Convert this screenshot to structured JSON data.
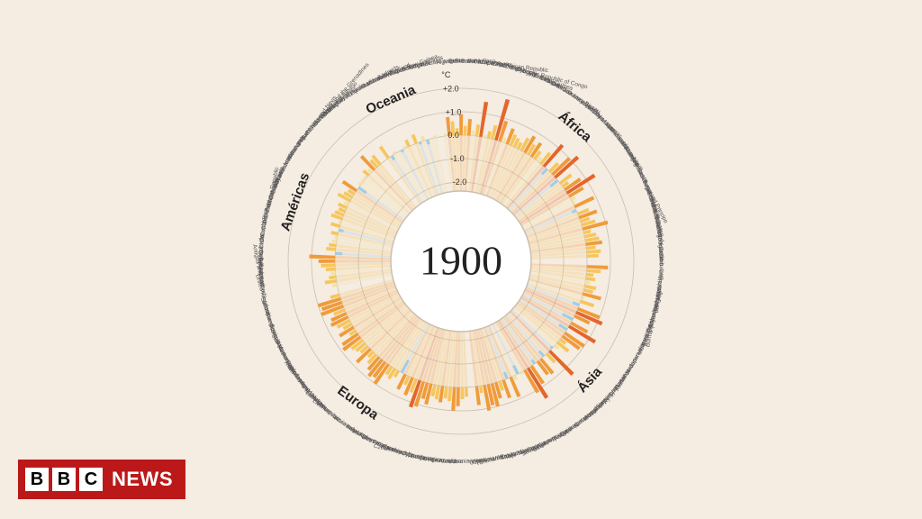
{
  "badge": {
    "b1": "B",
    "b2": "B",
    "b3": "C",
    "news": "NEWS"
  },
  "chart": {
    "type": "radial-bar",
    "center_label": "1900",
    "center_fontsize": 46,
    "background_color": "#f5ece2",
    "center_circle_fill": "#ffffff",
    "center_circle_stroke": "#c9bfae",
    "grid_ring_stroke": "#c9bfae",
    "bar_gap_deg": 0.35,
    "region_gap_deg": 3.0,
    "start_angle_deg": -8,
    "inner_radius": 78,
    "zero_radius": 140,
    "unit_radius": 26,
    "label_radius": 222,
    "region_label_radius": 195,
    "country_label_fontsize": 6.5,
    "region_label_fontsize": 15,
    "axis": {
      "unit_label": "°C",
      "ticks": [
        2.0,
        1.0,
        0.0,
        -1.0,
        -2.0
      ],
      "tick_labels": [
        "+2.0",
        "+1.0",
        "0.0",
        "-1.0",
        "-2.0"
      ],
      "fontsize": 9
    },
    "colors": {
      "cold2": "#5aa7c7",
      "cold1": "#a5cde0",
      "neutral": "#f2e2a6",
      "warm1": "#f6c65e",
      "warm2": "#f09b3a",
      "warm3": "#e3662c"
    },
    "regions": [
      {
        "name": "África",
        "countries": [
          {
            "name": "Algeria",
            "value": 0.1
          },
          {
            "name": "Angola",
            "value": 0.8
          },
          {
            "name": "Benin",
            "value": 0.6
          },
          {
            "name": "Botswana",
            "value": 0.3
          },
          {
            "name": "Burkina Faso",
            "value": 0.9
          },
          {
            "name": "Burundi",
            "value": 0.4
          },
          {
            "name": "Cameroon",
            "value": 0.7
          },
          {
            "name": "Cape Verde",
            "value": 0.2
          },
          {
            "name": "Central African Republic",
            "value": 0.5
          },
          {
            "name": "Chad",
            "value": 1.5
          },
          {
            "name": "Comoros",
            "value": 0.1
          },
          {
            "name": "Congo",
            "value": 0.3
          },
          {
            "name": "Democratic Republic of Congo",
            "value": 0.6
          },
          {
            "name": "Djibouti",
            "value": 1.8
          },
          {
            "name": "Egypt",
            "value": 0.9
          },
          {
            "name": "Equatorial Guinea",
            "value": 0.2
          },
          {
            "name": "Eritrea",
            "value": 0.7
          },
          {
            "name": "Ethiopia",
            "value": 0.5
          },
          {
            "name": "Gabon",
            "value": 0.4
          },
          {
            "name": "Gambia",
            "value": 0.3
          },
          {
            "name": "Ghana",
            "value": 0.6
          },
          {
            "name": "Guinea",
            "value": 0.8
          },
          {
            "name": "Guinea Bissau",
            "value": 0.5
          },
          {
            "name": "Ivory Coast",
            "value": 0.7
          },
          {
            "name": "Kenya",
            "value": 0.4
          },
          {
            "name": "Lesotho",
            "value": 0.2
          },
          {
            "name": "Liberia",
            "value": 0.6
          },
          {
            "name": "Libya",
            "value": 1.2
          },
          {
            "name": "Madagascar",
            "value": -0.3
          },
          {
            "name": "Malawi",
            "value": 0.5
          },
          {
            "name": "Mali",
            "value": 1.0
          },
          {
            "name": "Mauritania",
            "value": 1.3
          },
          {
            "name": "Mauritius",
            "value": -0.4
          },
          {
            "name": "Morocco",
            "value": 0.6
          },
          {
            "name": "Mozambique",
            "value": 0.3
          },
          {
            "name": "Namibia",
            "value": 0.8
          },
          {
            "name": "Niger",
            "value": 1.4
          },
          {
            "name": "Nigeria",
            "value": 0.7
          },
          {
            "name": "Rwanda",
            "value": 0.2
          },
          {
            "name": "Sao Tome and Principe",
            "value": 0.1
          },
          {
            "name": "Senegal",
            "value": 0.9
          },
          {
            "name": "Seychelles",
            "value": -0.2
          },
          {
            "name": "Sierra Leone",
            "value": 0.5
          },
          {
            "name": "Somalia",
            "value": 0.8
          },
          {
            "name": "South Africa",
            "value": 0.4
          },
          {
            "name": "South Sudan",
            "value": 0.6
          },
          {
            "name": "Sudan",
            "value": 1.1
          },
          {
            "name": "Swaziland",
            "value": 0.3
          },
          {
            "name": "Tanzania",
            "value": 0.5
          },
          {
            "name": "Togo",
            "value": 0.6
          },
          {
            "name": "Tunisia",
            "value": 0.7
          },
          {
            "name": "Uganda",
            "value": 0.4
          },
          {
            "name": "Zambia",
            "value": 0.6
          },
          {
            "name": "Zimbabwe",
            "value": 0.5
          }
        ]
      },
      {
        "name": "Ásia",
        "countries": [
          {
            "name": "Afghanistan",
            "value": 0.9
          },
          {
            "name": "Bahrain",
            "value": 0.6
          },
          {
            "name": "Bangladesh",
            "value": 0.3
          },
          {
            "name": "Bhutan",
            "value": 0.4
          },
          {
            "name": "Brunei",
            "value": 0.2
          },
          {
            "name": "Burma (Myanmar)",
            "value": 0.5
          },
          {
            "name": "Cambodia",
            "value": 0.4
          },
          {
            "name": "China",
            "value": 0.8
          },
          {
            "name": "East Timor",
            "value": 0.1
          },
          {
            "name": "India",
            "value": 0.6
          },
          {
            "name": "Indonesia",
            "value": -0.3
          },
          {
            "name": "Iran",
            "value": 1.0
          },
          {
            "name": "Iraq",
            "value": 1.2
          },
          {
            "name": "Israel",
            "value": 0.7
          },
          {
            "name": "Japan",
            "value": -0.5
          },
          {
            "name": "Jordan",
            "value": 0.8
          },
          {
            "name": "Kazakhstan",
            "value": 1.3
          },
          {
            "name": "Korea",
            "value": -0.4
          },
          {
            "name": "Kuwait",
            "value": 1.0
          },
          {
            "name": "Kyrgyzstan",
            "value": 0.9
          },
          {
            "name": "Laos",
            "value": 0.3
          },
          {
            "name": "Lebanon",
            "value": 0.6
          },
          {
            "name": "Malaysia",
            "value": 0.2
          },
          {
            "name": "Maldives",
            "value": -0.1
          },
          {
            "name": "Mongolia",
            "value": 1.4
          },
          {
            "name": "Nepal",
            "value": 0.5
          },
          {
            "name": "N. Korea",
            "value": -0.3
          },
          {
            "name": "Oman",
            "value": 0.8
          },
          {
            "name": "Pakistan",
            "value": 0.7
          },
          {
            "name": "Philippines",
            "value": -0.2
          },
          {
            "name": "Qatar",
            "value": 0.9
          },
          {
            "name": "Russia",
            "value": 1.5
          },
          {
            "name": "Saudi Arabia",
            "value": 1.1
          },
          {
            "name": "Singapore",
            "value": 0.1
          },
          {
            "name": "South Korea",
            "value": -0.4
          },
          {
            "name": "Sri Lanka",
            "value": 0.2
          },
          {
            "name": "Syria",
            "value": 0.9
          },
          {
            "name": "Taiwan",
            "value": -0.3
          },
          {
            "name": "Tajikistan",
            "value": 0.8
          },
          {
            "name": "Thailand",
            "value": 0.4
          },
          {
            "name": "Turkey",
            "value": 0.7
          },
          {
            "name": "Turkmenistan",
            "value": 1.0
          },
          {
            "name": "UAE",
            "value": 0.9
          },
          {
            "name": "Uzbekistan",
            "value": 1.1
          },
          {
            "name": "Vietnam",
            "value": 0.3
          },
          {
            "name": "Yemen",
            "value": 0.8
          }
        ]
      },
      {
        "name": "Europa",
        "countries": [
          {
            "name": "Albania",
            "value": 0.4
          },
          {
            "name": "Andorra",
            "value": 0.5
          },
          {
            "name": "Austria",
            "value": 0.8
          },
          {
            "name": "Belarus",
            "value": 1.0
          },
          {
            "name": "Belgium",
            "value": 0.6
          },
          {
            "name": "Bosnia",
            "value": 0.5
          },
          {
            "name": "Bulgaria",
            "value": 0.7
          },
          {
            "name": "Croatia",
            "value": 0.6
          },
          {
            "name": "Cyprus",
            "value": 0.5
          },
          {
            "name": "Czech Republic",
            "value": 0.9
          },
          {
            "name": "Denmark",
            "value": 0.7
          },
          {
            "name": "Estonia",
            "value": 1.1
          },
          {
            "name": "Finland",
            "value": 1.2
          },
          {
            "name": "France",
            "value": 0.6
          },
          {
            "name": "Germany",
            "value": 0.8
          },
          {
            "name": "Greece",
            "value": 0.4
          },
          {
            "name": "Hungary",
            "value": 0.7
          },
          {
            "name": "Iceland",
            "value": -0.6
          },
          {
            "name": "Ireland",
            "value": 0.3
          },
          {
            "name": "Italy",
            "value": 0.5
          },
          {
            "name": "Kosovo",
            "value": 0.4
          },
          {
            "name": "Latvia",
            "value": 1.0
          },
          {
            "name": "Liechtenstein",
            "value": 0.8
          },
          {
            "name": "Lithuania",
            "value": 0.9
          },
          {
            "name": "Luxembourg",
            "value": 0.7
          },
          {
            "name": "Macedonia",
            "value": 0.5
          },
          {
            "name": "Malta",
            "value": 0.3
          },
          {
            "name": "Moldova",
            "value": 0.8
          },
          {
            "name": "Monaco",
            "value": 0.4
          },
          {
            "name": "Montenegro",
            "value": 0.5
          },
          {
            "name": "Netherlands",
            "value": 0.6
          },
          {
            "name": "Norway",
            "value": 0.9
          },
          {
            "name": "Poland",
            "value": 0.8
          },
          {
            "name": "Portugal",
            "value": 0.3
          },
          {
            "name": "Romania",
            "value": 0.7
          },
          {
            "name": "San Marino",
            "value": 0.4
          },
          {
            "name": "Serbia",
            "value": 0.6
          },
          {
            "name": "Slovakia",
            "value": 0.8
          },
          {
            "name": "Slovenia",
            "value": 0.7
          },
          {
            "name": "Spain",
            "value": 0.5
          },
          {
            "name": "Sweden",
            "value": 1.0
          },
          {
            "name": "Switzerland",
            "value": 0.9
          },
          {
            "name": "Ukraine",
            "value": 1.0
          },
          {
            "name": "United Kingdom",
            "value": 0.4
          }
        ]
      },
      {
        "name": "Américas",
        "countries": [
          {
            "name": "Antigua and Barbuda",
            "value": 0.2
          },
          {
            "name": "Argentina",
            "value": 0.5
          },
          {
            "name": "Bahamas",
            "value": 0.3
          },
          {
            "name": "Barbados",
            "value": 0.2
          },
          {
            "name": "Belize",
            "value": 0.4
          },
          {
            "name": "Bolivia",
            "value": 0.6
          },
          {
            "name": "Brazil",
            "value": 0.7
          },
          {
            "name": "Canada",
            "value": 1.1
          },
          {
            "name": "Chile",
            "value": -0.3
          },
          {
            "name": "Colombia",
            "value": 0.4
          },
          {
            "name": "Costa Rica",
            "value": 0.3
          },
          {
            "name": "Cuba",
            "value": 0.2
          },
          {
            "name": "Dominica",
            "value": 0.1
          },
          {
            "name": "Dominican Republic",
            "value": 0.3
          },
          {
            "name": "Ecuador",
            "value": -0.2
          },
          {
            "name": "El Salvador",
            "value": 0.4
          },
          {
            "name": "Grenada",
            "value": 0.1
          },
          {
            "name": "Guatemala",
            "value": 0.5
          },
          {
            "name": "Guyana",
            "value": 0.4
          },
          {
            "name": "Haiti",
            "value": 0.3
          },
          {
            "name": "Honduras",
            "value": 0.4
          },
          {
            "name": "Jamaica",
            "value": 0.2
          },
          {
            "name": "Mexico",
            "value": 0.6
          },
          {
            "name": "Nicaragua",
            "value": 0.4
          },
          {
            "name": "Panama",
            "value": 0.3
          },
          {
            "name": "Paraguay",
            "value": 0.7
          },
          {
            "name": "Peru",
            "value": -0.4
          },
          {
            "name": "Saint Kitts and Nevis",
            "value": 0.1
          },
          {
            "name": "Saint Lucia",
            "value": 0.1
          },
          {
            "name": "Saint Vincent and the Grenadines",
            "value": 0.1
          },
          {
            "name": "Suriname",
            "value": 0.3
          },
          {
            "name": "Trinidad and Tobago",
            "value": 0.2
          },
          {
            "name": "United States",
            "value": 0.8
          },
          {
            "name": "Uruguay",
            "value": 0.4
          },
          {
            "name": "Venezuela",
            "value": 0.5
          }
        ]
      },
      {
        "name": "Oceania",
        "countries": [
          {
            "name": "Australia",
            "value": 0.6
          },
          {
            "name": "Fiji",
            "value": -0.2
          },
          {
            "name": "Kiribati",
            "value": 0.1
          },
          {
            "name": "Marshall Islands",
            "value": 0.0
          },
          {
            "name": "Micronesia",
            "value": -0.1
          },
          {
            "name": "Nauru",
            "value": 0.1
          },
          {
            "name": "New Zealand",
            "value": 0.3
          },
          {
            "name": "Palau",
            "value": 0.0
          },
          {
            "name": "Papua New Guinea",
            "value": 0.4
          },
          {
            "name": "Samoa",
            "value": -0.1
          },
          {
            "name": "Solomon Islands",
            "value": 0.2
          },
          {
            "name": "Tonga",
            "value": -0.2
          },
          {
            "name": "Tuvalu",
            "value": 0.0
          },
          {
            "name": "Vanuatu",
            "value": 0.1
          }
        ]
      }
    ]
  }
}
